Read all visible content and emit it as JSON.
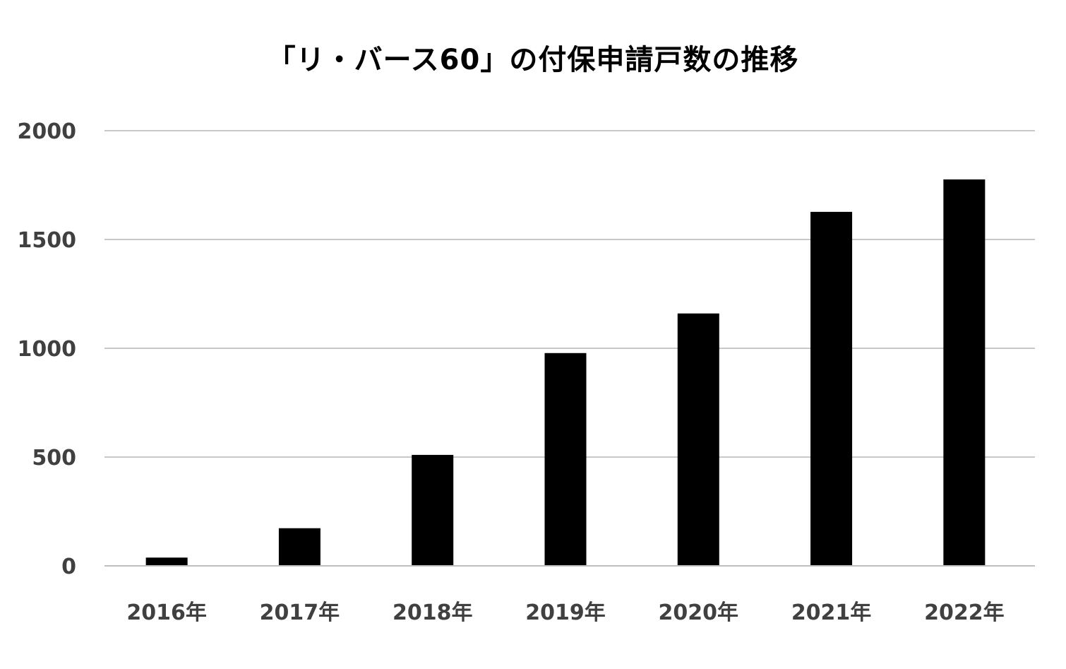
{
  "chart_data": {
    "type": "bar",
    "title": "「リ・バース60」の付保申請戸数の推移",
    "categories": [
      "2016年",
      "2017年",
      "2018年",
      "2019年",
      "2020年",
      "2021年",
      "2022年"
    ],
    "values": [
      38,
      173,
      510,
      978,
      1160,
      1627,
      1776
    ],
    "ylim": [
      0,
      2000
    ],
    "yticks": [
      0,
      500,
      1000,
      1500,
      2000
    ],
    "xlabel": "",
    "ylabel": "",
    "grid": true,
    "legend": "none",
    "colors": {
      "bar": "#000000",
      "grid": "#c8c8c8",
      "axis": "#bfbfbf",
      "tick_text": "#404040"
    }
  }
}
